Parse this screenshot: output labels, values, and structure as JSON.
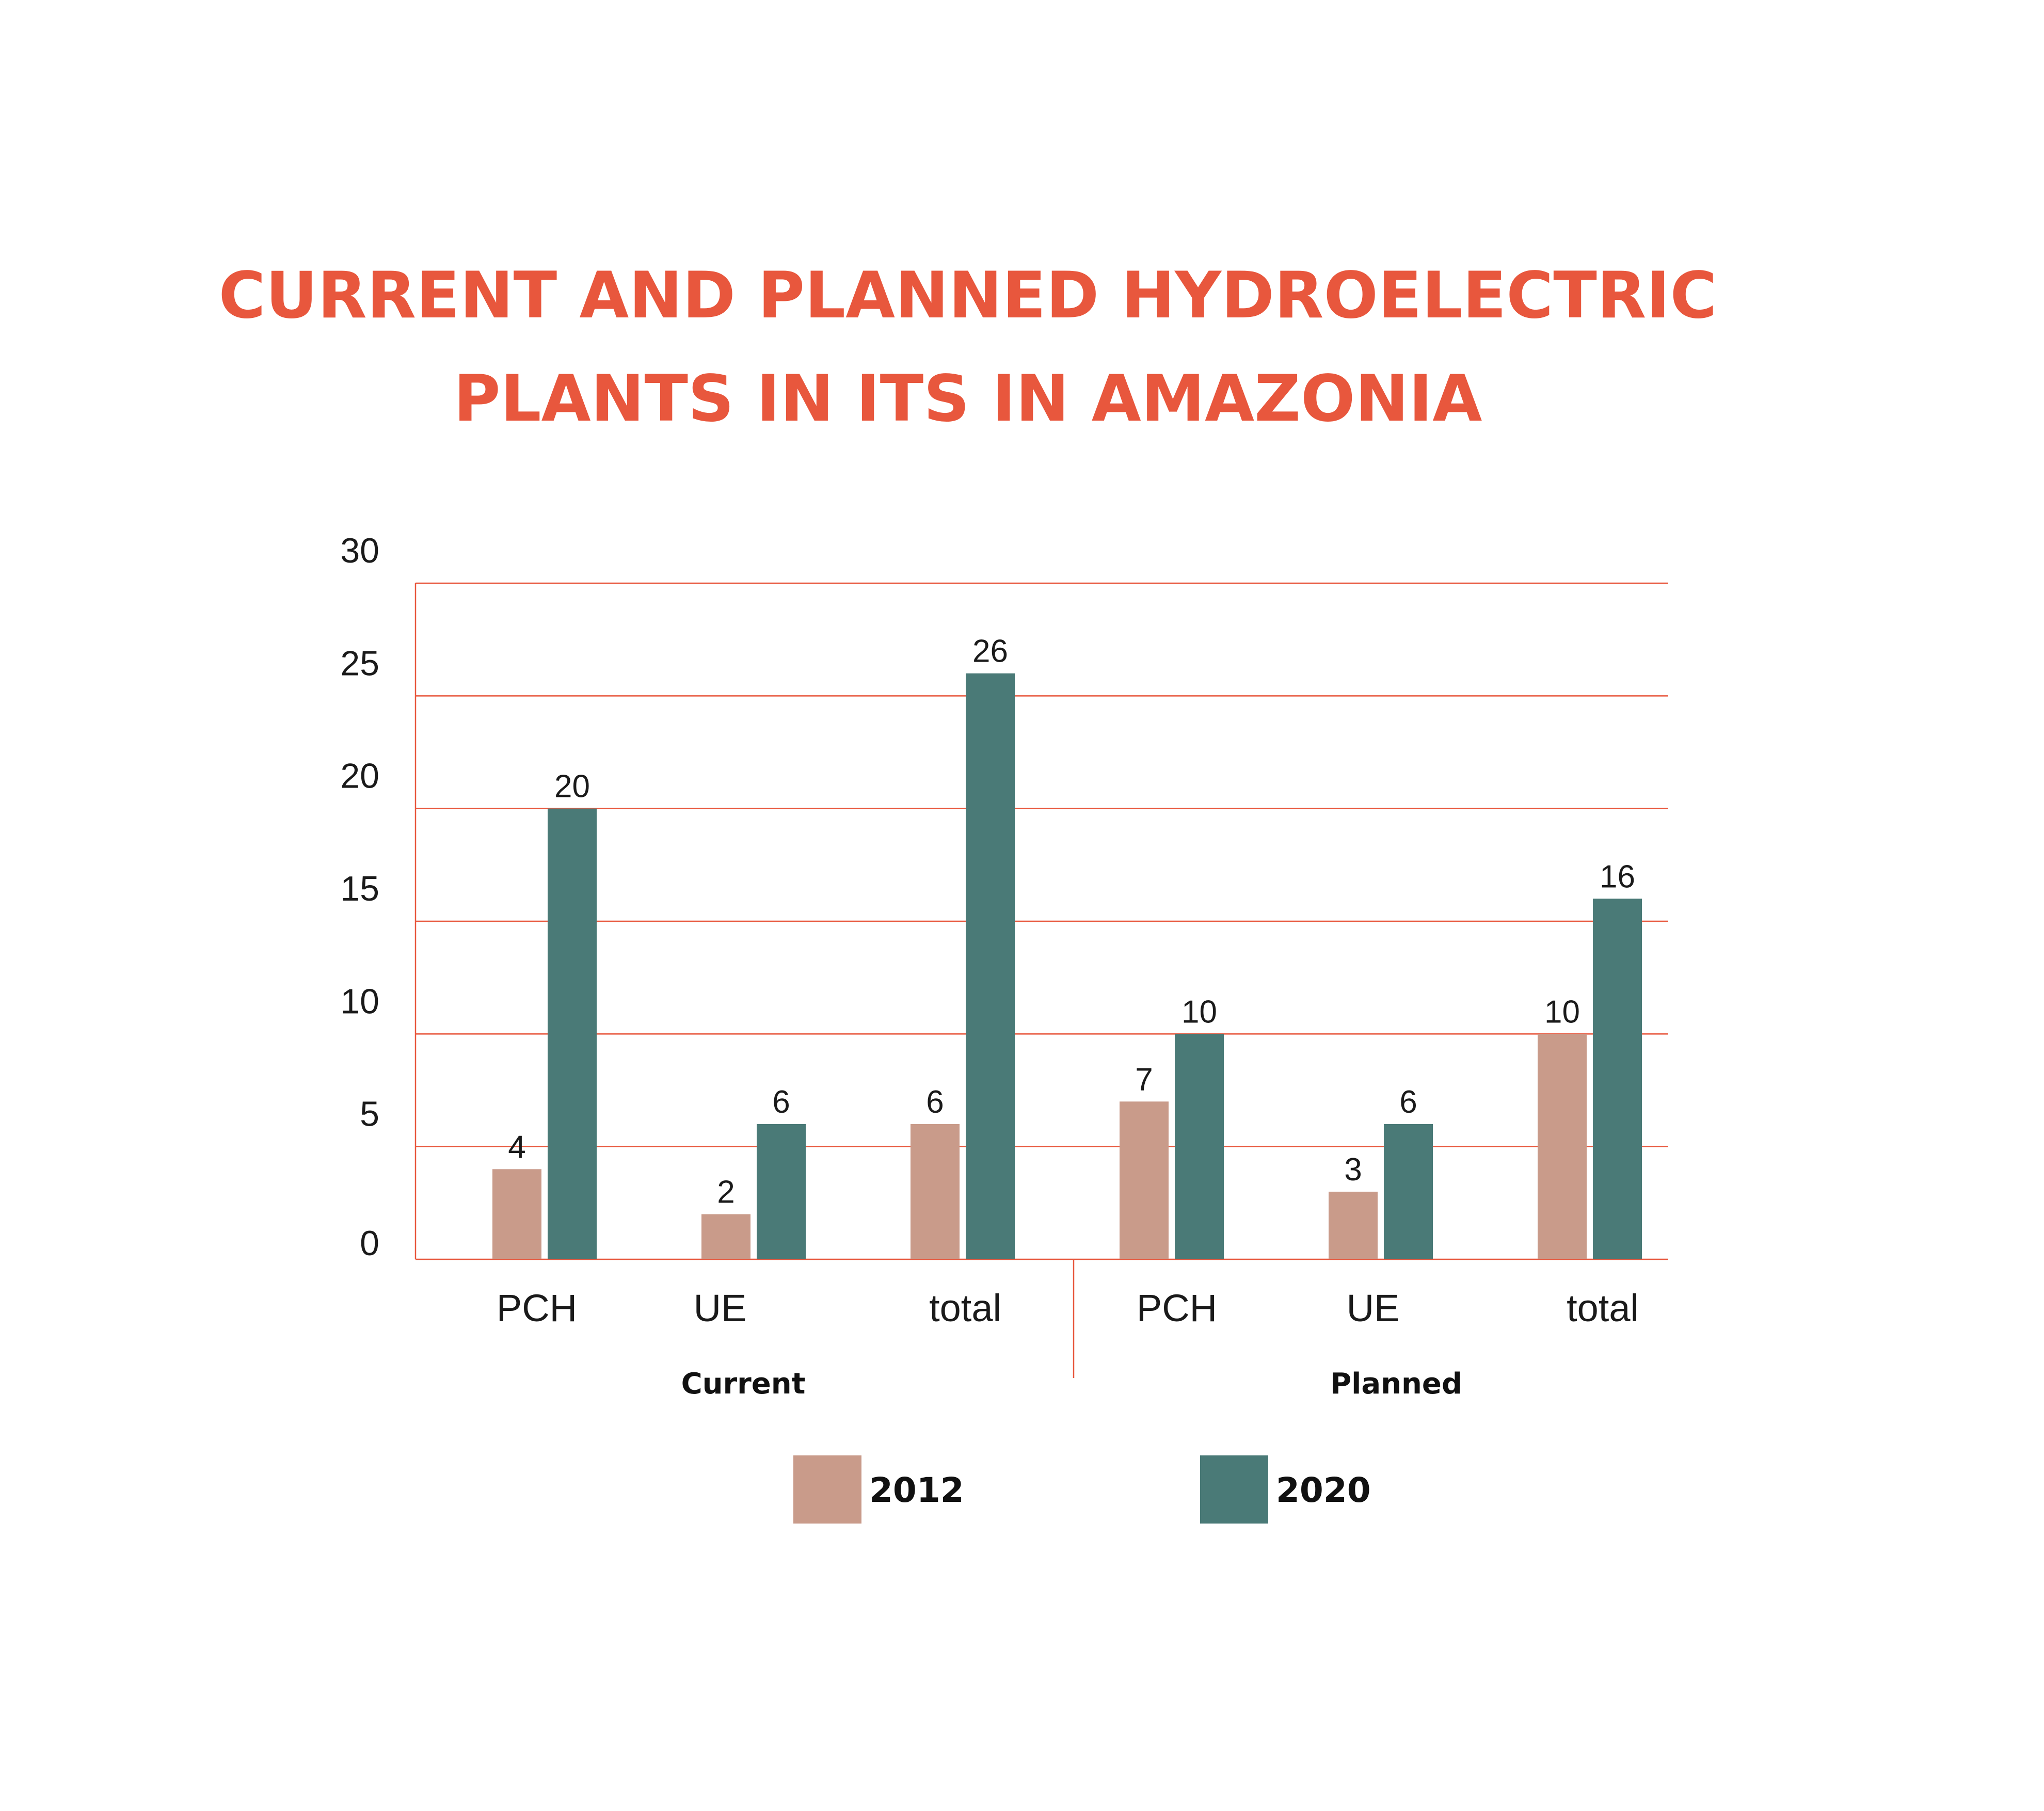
{
  "chart_data": {
    "type": "bar",
    "title_lines": [
      "CURRENT AND PLANNED HYDROELECTRIC",
      "PLANTS IN ITS IN AMAZONIA"
    ],
    "groups": [
      {
        "label": "Current",
        "categories": [
          "PCH",
          "UE",
          "total"
        ]
      },
      {
        "label": "Planned",
        "categories": [
          "PCH",
          "UE",
          "total"
        ]
      }
    ],
    "categories": [
      "PCH",
      "UE",
      "total",
      "PCH",
      "UE",
      "total"
    ],
    "series": [
      {
        "name": "2012",
        "color": "#c99b8a",
        "values": [
          4,
          2,
          6,
          7,
          3,
          10
        ]
      },
      {
        "name": "2020",
        "color": "#4a7a77",
        "values": [
          20,
          6,
          26,
          10,
          6,
          16
        ]
      }
    ],
    "ylim": [
      0,
      30
    ],
    "yticks": [
      0,
      5,
      10,
      15,
      20,
      25,
      30
    ],
    "grid": true,
    "grid_color": "#e8573d",
    "xlabel": "",
    "ylabel": "",
    "legend_position": "bottom"
  }
}
